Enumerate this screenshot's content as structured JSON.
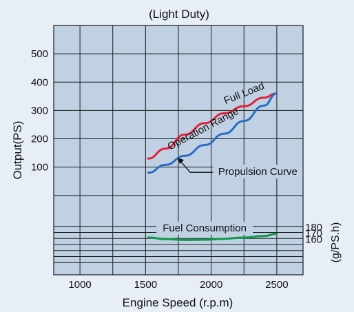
{
  "chart_data": {
    "type": "line",
    "title": "(Light Duty)",
    "xlabel": "Engine Speed (r.p.m)",
    "ylabel": "Output(PS)",
    "y2label": "(g/PS.h)",
    "xlim": [
      800,
      2700
    ],
    "xticks": [
      1000,
      1500,
      2000,
      2500
    ],
    "ylim": [
      -280,
      600
    ],
    "yticks": [
      100,
      200,
      300,
      400,
      500
    ],
    "y2lim": [
      110,
      190
    ],
    "y2ticks": [
      160,
      170,
      180
    ],
    "grid": true,
    "colors": {
      "background": "#e7eef6",
      "plot_bg": "#bfd1e3",
      "grid": "#1a1a1a",
      "full_load": "#e2203a",
      "propulsion": "#2a6cc2",
      "fuel": "#0f9a4a"
    },
    "series": [
      {
        "name": "Full Load",
        "axis": "left",
        "x": [
          1520,
          1650,
          1800,
          1950,
          2100,
          2250,
          2400,
          2500
        ],
        "values": [
          130,
          165,
          215,
          255,
          290,
          315,
          345,
          360
        ]
      },
      {
        "name": "Propulsion Curve",
        "axis": "left",
        "x": [
          1520,
          1650,
          1800,
          1950,
          2100,
          2250,
          2400,
          2500
        ],
        "values": [
          80,
          108,
          140,
          178,
          218,
          263,
          317,
          360
        ]
      },
      {
        "name": "Fuel Consumption",
        "axis": "right",
        "x": [
          1520,
          1650,
          1800,
          1950,
          2100,
          2250,
          2400,
          2500
        ],
        "values": [
          161.5,
          159,
          157.5,
          158,
          159.5,
          161.5,
          164,
          168
        ]
      }
    ],
    "annotations": [
      {
        "text": "Full Load",
        "x": 2260,
        "y": 350,
        "angle": -22
      },
      {
        "text": "Operation Range",
        "x": 1950,
        "y": 225,
        "angle": -28
      },
      {
        "text": "Propulsion Curve",
        "x": 2350,
        "y": 72,
        "angle": 0
      },
      {
        "text": "Fuel Consumption",
        "x": 1950,
        "y": 40,
        "angle": 0
      }
    ]
  }
}
